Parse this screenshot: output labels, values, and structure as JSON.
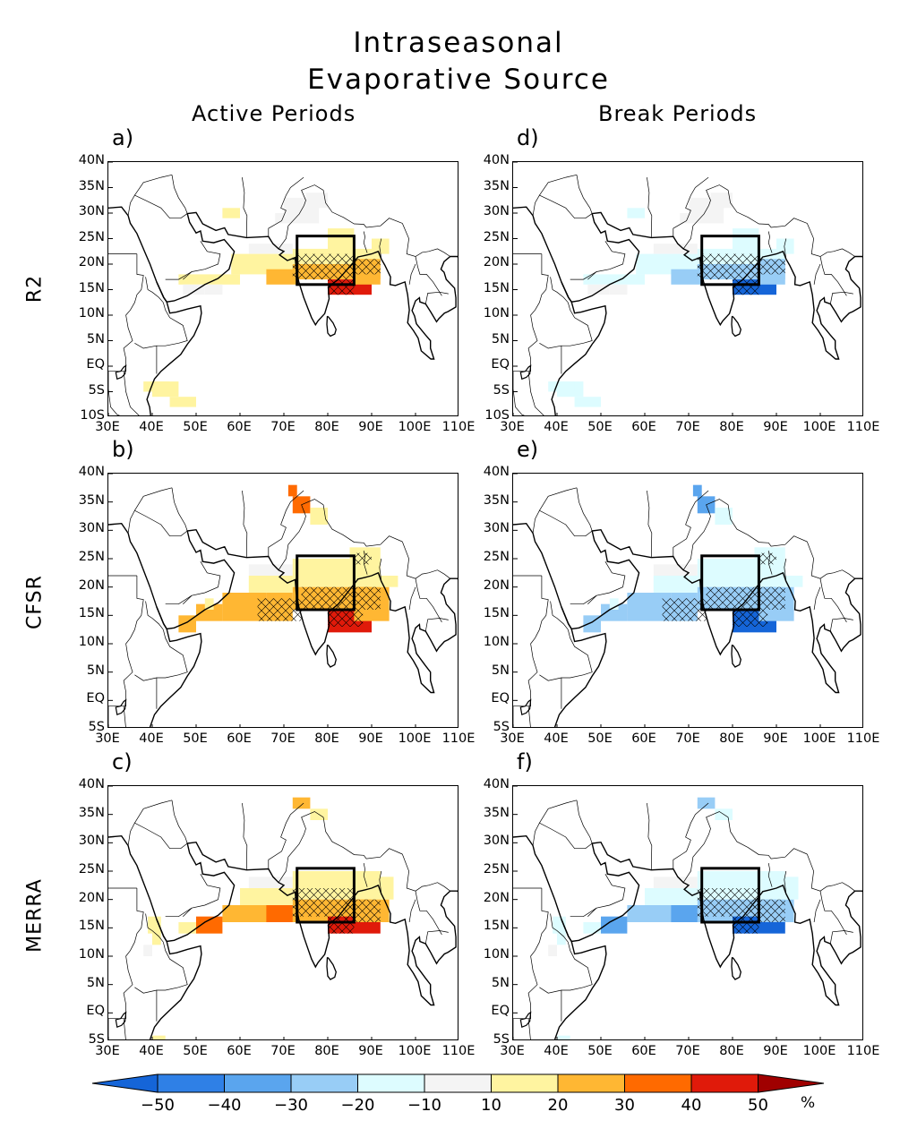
{
  "title": {
    "line1": "Intraseasonal",
    "line2": "Evaporative Source"
  },
  "columns": [
    "Active Periods",
    "Break Periods"
  ],
  "rows": [
    "R2",
    "CFSR",
    "MERRA"
  ],
  "panels": [
    {
      "id": "a",
      "label": "a)",
      "row": 0,
      "col": 0,
      "sign": 1,
      "dataset": "R2"
    },
    {
      "id": "d",
      "label": "d)",
      "row": 0,
      "col": 1,
      "sign": -1,
      "dataset": "R2"
    },
    {
      "id": "b",
      "label": "b)",
      "row": 1,
      "col": 0,
      "sign": 1,
      "dataset": "CFSR"
    },
    {
      "id": "e",
      "label": "e)",
      "row": 1,
      "col": 1,
      "sign": -1,
      "dataset": "CFSR"
    },
    {
      "id": "c",
      "label": "c)",
      "row": 2,
      "col": 0,
      "sign": 1,
      "dataset": "MERRA"
    },
    {
      "id": "f",
      "label": "f)",
      "row": 2,
      "col": 1,
      "sign": -1,
      "dataset": "MERRA"
    }
  ],
  "axes": {
    "lon_range": [
      30,
      110
    ],
    "lat_range_row0": [
      -10,
      40
    ],
    "lat_range_other": [
      -5,
      40
    ],
    "x_ticks": [
      "30E",
      "40E",
      "50E",
      "60E",
      "70E",
      "80E",
      "90E",
      "100E",
      "110E"
    ],
    "y_ticks_row0": [
      "40N",
      "35N",
      "30N",
      "25N",
      "20N",
      "15N",
      "10N",
      "5N",
      "EQ",
      "5S",
      "10S"
    ],
    "y_ticks_other": [
      "40N",
      "35N",
      "30N",
      "25N",
      "20N",
      "15N",
      "10N",
      "5N",
      "EQ",
      "5S"
    ]
  },
  "colorbar": {
    "levels": [
      -50,
      -40,
      -30,
      -20,
      -10,
      10,
      20,
      30,
      40,
      50
    ],
    "labels": [
      "−50",
      "−40",
      "−30",
      "−20",
      "−10",
      "10",
      "20",
      "30",
      "40",
      "50"
    ],
    "unit": "%",
    "colors": [
      "#1565d8",
      "#2f80e6",
      "#5aa5ee",
      "#98cdf6",
      "#ddfcff",
      "#f4f4f4",
      "#fff4a0",
      "#ffb733",
      "#ff6a00",
      "#e01a0a",
      "#a00000"
    ]
  },
  "box_region": {
    "lon": [
      73,
      86
    ],
    "lat": [
      16,
      25.5
    ]
  }
}
